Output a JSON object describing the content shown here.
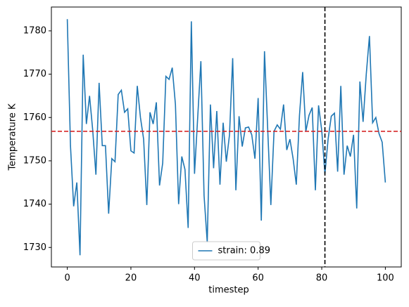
{
  "chart_data": {
    "type": "line",
    "x_label": "timestep",
    "y_label": "Temperature K",
    "x": [
      0,
      1,
      2,
      3,
      4,
      5,
      6,
      7,
      8,
      9,
      10,
      11,
      12,
      13,
      14,
      15,
      16,
      17,
      18,
      19,
      20,
      21,
      22,
      23,
      24,
      25,
      26,
      27,
      28,
      29,
      30,
      31,
      32,
      33,
      34,
      35,
      36,
      37,
      38,
      39,
      40,
      41,
      42,
      43,
      44,
      45,
      46,
      47,
      48,
      49,
      50,
      51,
      52,
      53,
      54,
      55,
      56,
      57,
      58,
      59,
      60,
      61,
      62,
      63,
      64,
      65,
      66,
      67,
      68,
      69,
      70,
      71,
      72,
      73,
      74,
      75,
      76,
      77,
      78,
      79,
      80,
      81,
      82,
      83,
      84,
      85,
      86,
      87,
      88,
      89,
      90,
      91,
      92,
      93,
      94,
      95,
      96,
      97,
      98,
      99,
      100
    ],
    "series": [
      {
        "name": "strain: 0.89",
        "color": "#1f77b4",
        "values": [
          1782.7,
          1753.5,
          1739.5,
          1745,
          1728.2,
          1774.5,
          1758.5,
          1765,
          1757,
          1746.8,
          1768,
          1753.5,
          1753.5,
          1737.8,
          1750.5,
          1749.8,
          1765.3,
          1766.3,
          1761.2,
          1762,
          1752.3,
          1751.8,
          1767.3,
          1760,
          1755,
          1739.8,
          1761.2,
          1758.5,
          1763.5,
          1744.3,
          1749.5,
          1769.5,
          1768.8,
          1771.5,
          1763,
          1740,
          1751,
          1748,
          1734.5,
          1782.2,
          1747,
          1760,
          1773,
          1742,
          1731.2,
          1763,
          1748.3,
          1761.5,
          1744.5,
          1758.8,
          1749.8,
          1756,
          1773.7,
          1743.2,
          1760.3,
          1753.3,
          1757.6,
          1757.8,
          1756,
          1750.5,
          1764.5,
          1736.2,
          1775.3,
          1757.5,
          1739.8,
          1756.8,
          1758.3,
          1757.3,
          1763,
          1752.5,
          1755,
          1750.5,
          1744.5,
          1760.5,
          1770.5,
          1756.8,
          1760.5,
          1762.3,
          1743.2,
          1762.8,
          1757,
          1747,
          1755,
          1760.3,
          1761,
          1747.5,
          1767.3,
          1746.8,
          1753.5,
          1751,
          1756,
          1739,
          1768.3,
          1759,
          1770,
          1778.8,
          1758.8,
          1760,
          1756.3,
          1754.3,
          1745
        ]
      }
    ],
    "hline": {
      "value": 1756.8,
      "color": "#d62728"
    },
    "vline": {
      "value": 81,
      "color": "#000000"
    },
    "xlim": [
      -5,
      105
    ],
    "xticks": [
      0,
      20,
      40,
      60,
      80,
      100
    ],
    "ylim": [
      1725.5,
      1785.5
    ],
    "yticks": [
      1730,
      1740,
      1750,
      1760,
      1770,
      1780
    ],
    "legend": "lower center"
  }
}
